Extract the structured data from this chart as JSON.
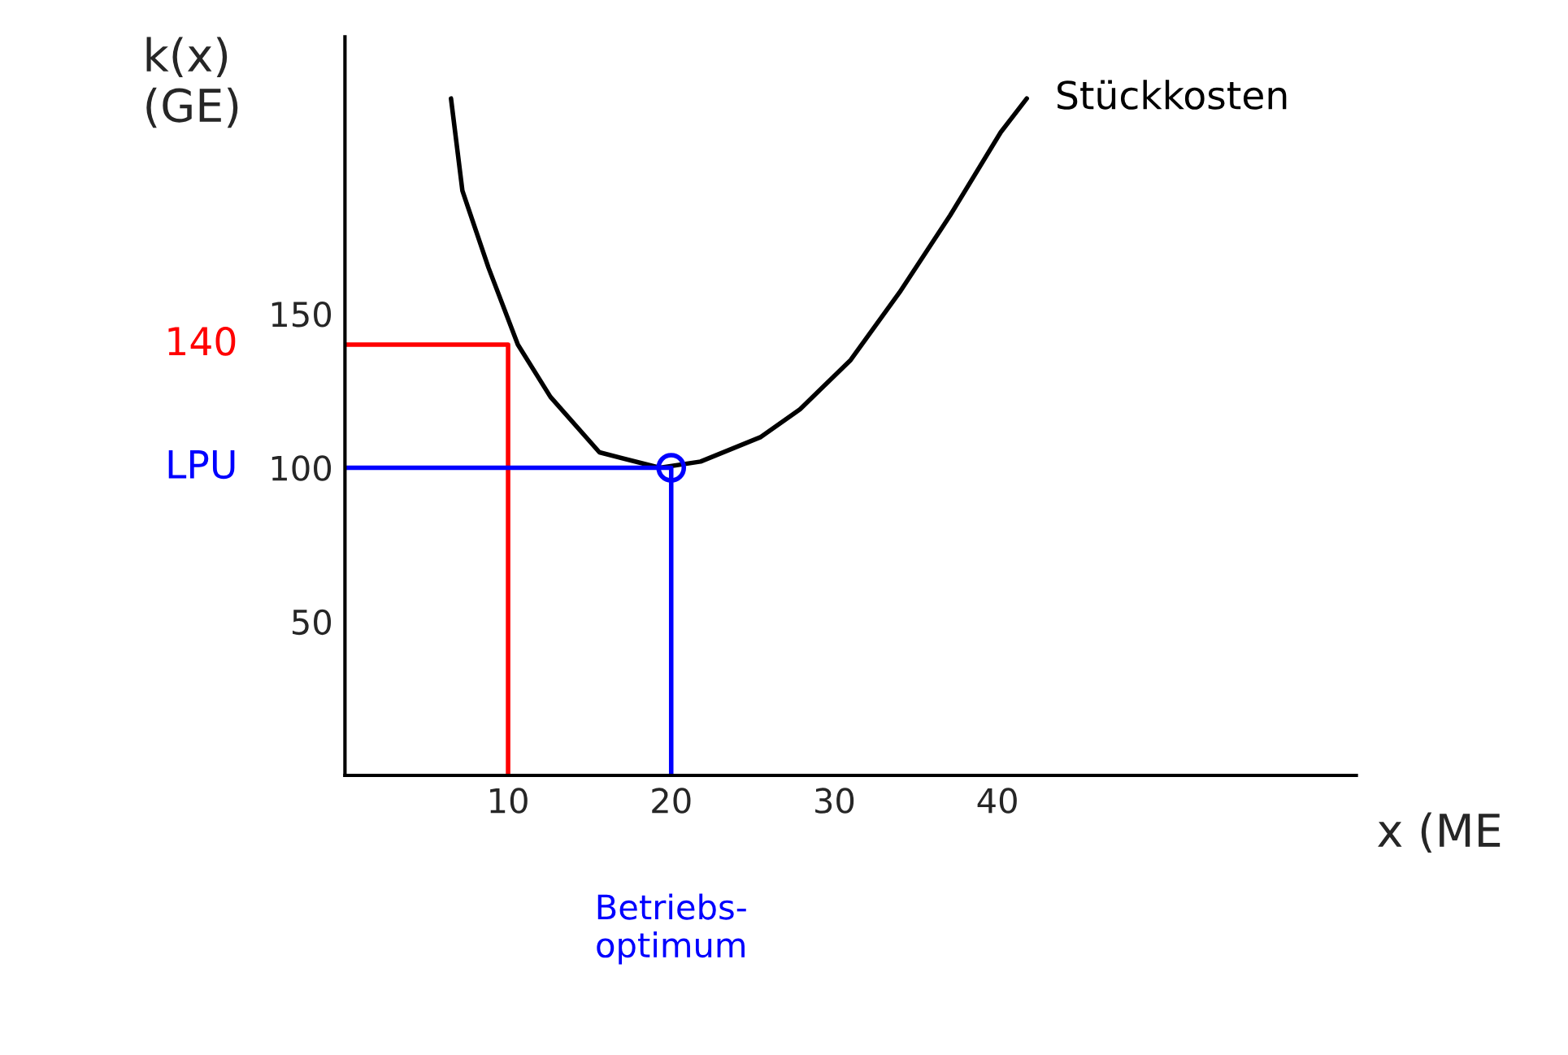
{
  "chart_data": {
    "type": "line",
    "ylabel": "k(x)\n(GE)",
    "xlabel": "x (ME",
    "xlim": [
      0,
      62
    ],
    "ylim": [
      0,
      240
    ],
    "xticks": [
      10,
      20,
      30,
      40
    ],
    "yticks": [
      50,
      100,
      150
    ],
    "grid": false,
    "legend": false,
    "series": [
      {
        "name": "Stückkosten",
        "color": "#000000",
        "x": [
          41.8,
          40.2,
          37.1,
          34,
          31,
          27.9,
          25.5,
          21.8,
          19.3,
          15.6,
          12.6,
          10.6,
          8.8,
          7.2,
          6.5
        ],
        "values": [
          220,
          209,
          182,
          157,
          135,
          119,
          110,
          102,
          100,
          105,
          123,
          140,
          165,
          190,
          220
        ]
      },
      {
        "name": "140",
        "color": "#ff0000",
        "x": [
          0,
          10,
          10
        ],
        "values": [
          140,
          140,
          0
        ]
      },
      {
        "name": "LPU",
        "color": "#0000ff",
        "x": [
          0,
          20,
          20
        ],
        "values": [
          100,
          100,
          0
        ]
      },
      {
        "type": "scatter",
        "marker": "circle",
        "color": "#0000ff",
        "x": [
          20
        ],
        "values": [
          100
        ]
      }
    ],
    "annotations": [
      "Betriebs-\noptimum"
    ]
  }
}
